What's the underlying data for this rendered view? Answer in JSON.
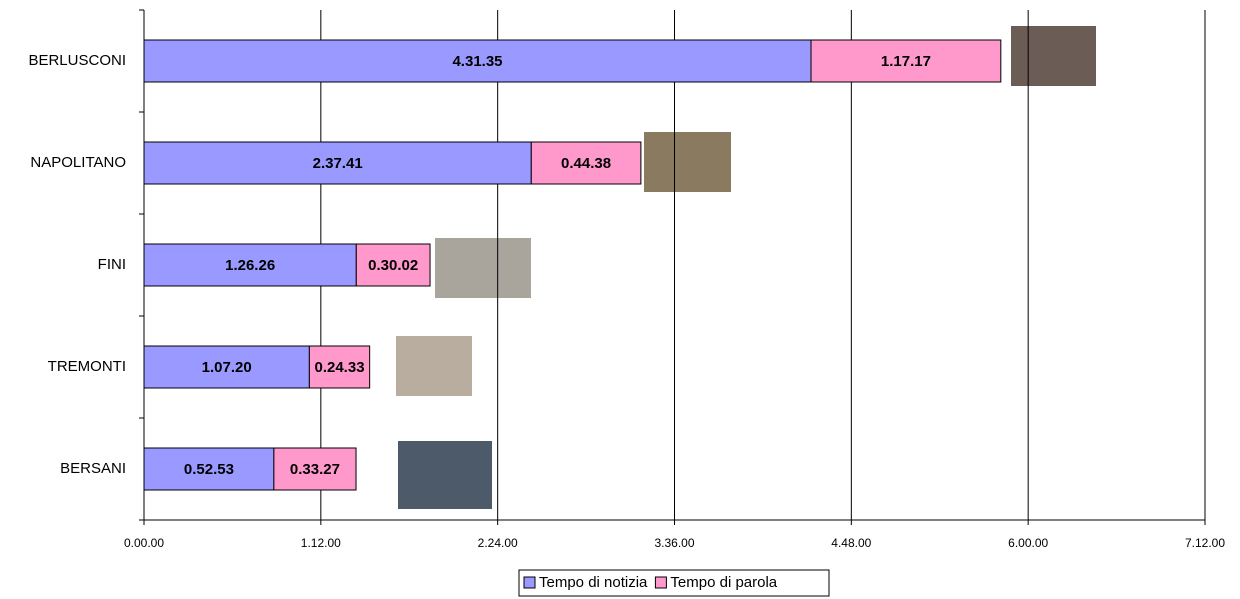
{
  "chart_data": {
    "type": "stacked-bar-horizontal",
    "categories": [
      "BERLUSCONI",
      "NAPOLITANO",
      "FINI",
      "TREMONTI",
      "BERSANI"
    ],
    "series": [
      {
        "name": "Tempo di notizia",
        "color": "#9999ff",
        "values": [
          16295,
          9461,
          5186,
          4040,
          3173
        ],
        "value_labels": [
          "4.31.35",
          "2.37.41",
          "1.26.26",
          "1.07.20",
          "0.52.53"
        ]
      },
      {
        "name": "Tempo di parola",
        "color": "#ff99cc",
        "values": [
          4637,
          2678,
          1802,
          1473,
          2007
        ],
        "value_labels": [
          "1.17.17",
          "0.44.38",
          "0.30.02",
          "0.24.33",
          "0.33.27"
        ]
      }
    ],
    "xlim": [
      0,
      25920
    ],
    "xticks": [
      {
        "value": 0,
        "label": "0.00.00"
      },
      {
        "value": 4320,
        "label": "1.12.00"
      },
      {
        "value": 8640,
        "label": "2.24.00"
      },
      {
        "value": 12960,
        "label": "3.36.00"
      },
      {
        "value": 17280,
        "label": "4.48.00"
      },
      {
        "value": 21600,
        "label": "6.00.00"
      },
      {
        "value": 25920,
        "label": "7.12.00"
      }
    ],
    "grid": true,
    "legend": "bottom"
  }
}
